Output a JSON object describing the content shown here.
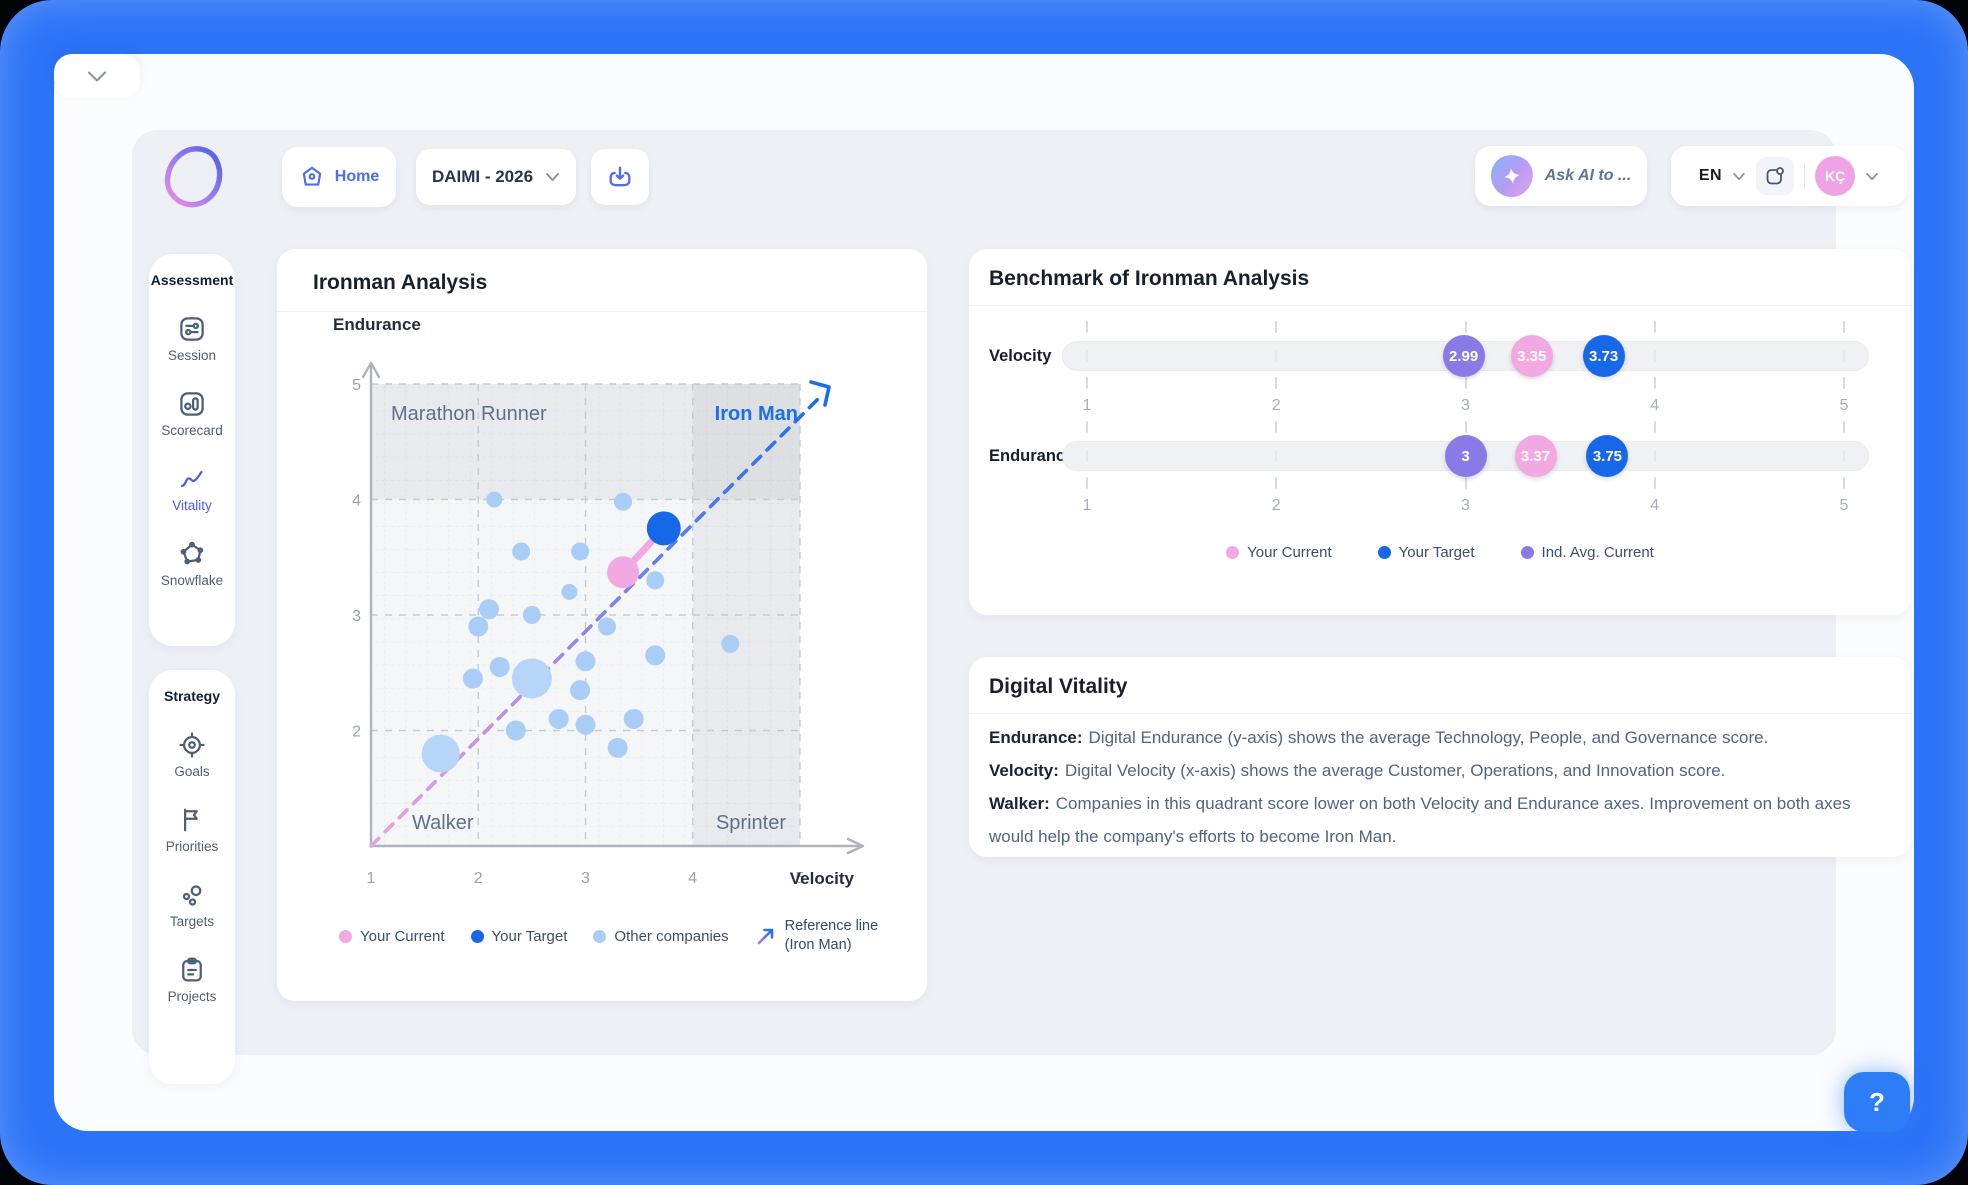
{
  "topbar": {
    "home_label": "Home",
    "workspace_value": "DAIMI - 2026",
    "ask_ai_label": "Ask AI to ...",
    "language_value": "EN",
    "avatar_initials": "KÇ"
  },
  "sidebar": {
    "sections": [
      {
        "header": "Assessment",
        "items": [
          {
            "label": "Session"
          },
          {
            "label": "Scorecard"
          },
          {
            "label": "Vitality",
            "active": true
          },
          {
            "label": "Snowflake"
          }
        ]
      },
      {
        "header": "Strategy",
        "items": [
          {
            "label": "Goals"
          },
          {
            "label": "Priorities"
          },
          {
            "label": "Targets"
          },
          {
            "label": "Projects"
          }
        ]
      }
    ]
  },
  "chart_data": [
    {
      "type": "scatter",
      "title": "Ironman Analysis",
      "xlabel": "Velocity",
      "ylabel": "Endurance",
      "xlim": [
        1,
        5
      ],
      "ylim": [
        1,
        5
      ],
      "xticks": [
        1,
        2,
        3,
        4,
        5
      ],
      "yticks": [
        2,
        3,
        4,
        5
      ],
      "grid": "fine-dashed",
      "quadrants": {
        "x_split": 4,
        "y_split": 4,
        "top_left": "Marathon Runner",
        "top_right": "Iron Man",
        "bottom_left": "Walker",
        "bottom_right": "Sprinter"
      },
      "reference_line": {
        "label_line1": "Reference line",
        "label_line2": "(Iron Man)",
        "from": [
          1,
          1
        ],
        "to": [
          5,
          5
        ],
        "gradient": [
          "#F0A0E2",
          "#B58BE8",
          "#5B7BF2",
          "#1A6FE8"
        ]
      },
      "series": [
        {
          "name": "Your Current",
          "role": "current",
          "color": "#F2A9E1",
          "points": [
            {
              "x": 3.35,
              "y": 3.37,
              "r": 16
            }
          ]
        },
        {
          "name": "Your Target",
          "role": "target",
          "color": "#1668E8",
          "points": [
            {
              "x": 3.73,
              "y": 3.75,
              "r": 17
            }
          ]
        },
        {
          "name": "Other companies",
          "role": "others",
          "color": "#A9CDF6",
          "points": [
            {
              "x": 2.15,
              "y": 4.0,
              "r": 8
            },
            {
              "x": 3.35,
              "y": 3.98,
              "r": 9
            },
            {
              "x": 2.4,
              "y": 3.55,
              "r": 9
            },
            {
              "x": 2.95,
              "y": 3.55,
              "r": 9
            },
            {
              "x": 3.65,
              "y": 3.3,
              "r": 9
            },
            {
              "x": 2.85,
              "y": 3.2,
              "r": 8
            },
            {
              "x": 2.1,
              "y": 3.05,
              "r": 10
            },
            {
              "x": 2.5,
              "y": 3.0,
              "r": 9
            },
            {
              "x": 2.0,
              "y": 2.9,
              "r": 10
            },
            {
              "x": 3.2,
              "y": 2.9,
              "r": 9
            },
            {
              "x": 4.35,
              "y": 2.75,
              "r": 9
            },
            {
              "x": 3.65,
              "y": 2.65,
              "r": 10
            },
            {
              "x": 3.0,
              "y": 2.6,
              "r": 10
            },
            {
              "x": 2.2,
              "y": 2.55,
              "r": 10
            },
            {
              "x": 2.5,
              "y": 2.45,
              "r": 20
            },
            {
              "x": 1.95,
              "y": 2.45,
              "r": 10
            },
            {
              "x": 2.95,
              "y": 2.35,
              "r": 10
            },
            {
              "x": 2.75,
              "y": 2.1,
              "r": 10
            },
            {
              "x": 3.45,
              "y": 2.1,
              "r": 10
            },
            {
              "x": 3.0,
              "y": 2.05,
              "r": 10
            },
            {
              "x": 2.35,
              "y": 2.0,
              "r": 10
            },
            {
              "x": 1.65,
              "y": 1.8,
              "r": 19
            },
            {
              "x": 3.3,
              "y": 1.85,
              "r": 10
            }
          ]
        }
      ]
    },
    {
      "type": "dot-strip",
      "title": "Benchmark of Ironman Analysis",
      "range": [
        1,
        5
      ],
      "ticks": [
        1,
        2,
        3,
        4,
        5
      ],
      "rows": [
        {
          "label": "Velocity",
          "values": [
            {
              "series": "Ind. Avg. Current",
              "value": 2.99,
              "display": "2.99"
            },
            {
              "series": "Your Current",
              "value": 3.35,
              "display": "3.35"
            },
            {
              "series": "Your Target",
              "value": 3.73,
              "display": "3.73"
            }
          ]
        },
        {
          "label": "Endurance",
          "values": [
            {
              "series": "Ind. Avg. Current",
              "value": 3,
              "display": "3"
            },
            {
              "series": "Your Current",
              "value": 3.37,
              "display": "3.37"
            },
            {
              "series": "Your Target",
              "value": 3.75,
              "display": "3.75"
            }
          ]
        }
      ],
      "legend": [
        {
          "label": "Your Current",
          "color": "#F2A9E1"
        },
        {
          "label": "Your Target",
          "color": "#1668E8"
        },
        {
          "label": "Ind. Avg. Current",
          "color": "#8A7AE6"
        }
      ]
    }
  ],
  "vitality_panel": {
    "title": "Digital Vitality",
    "items": [
      {
        "term": "Endurance:",
        "text": "Digital Endurance (y-axis) shows the average Technology, People, and Governance score."
      },
      {
        "term": "Velocity:",
        "text": "Digital Velocity (x-axis) shows the average Customer, Operations, and Innovation score."
      },
      {
        "term": "Walker:",
        "text": "Companies in this quadrant score lower on both Velocity and Endurance axes. Improvement on both axes would help the company's efforts to become Iron Man."
      }
    ]
  },
  "help": {
    "label": "?"
  }
}
